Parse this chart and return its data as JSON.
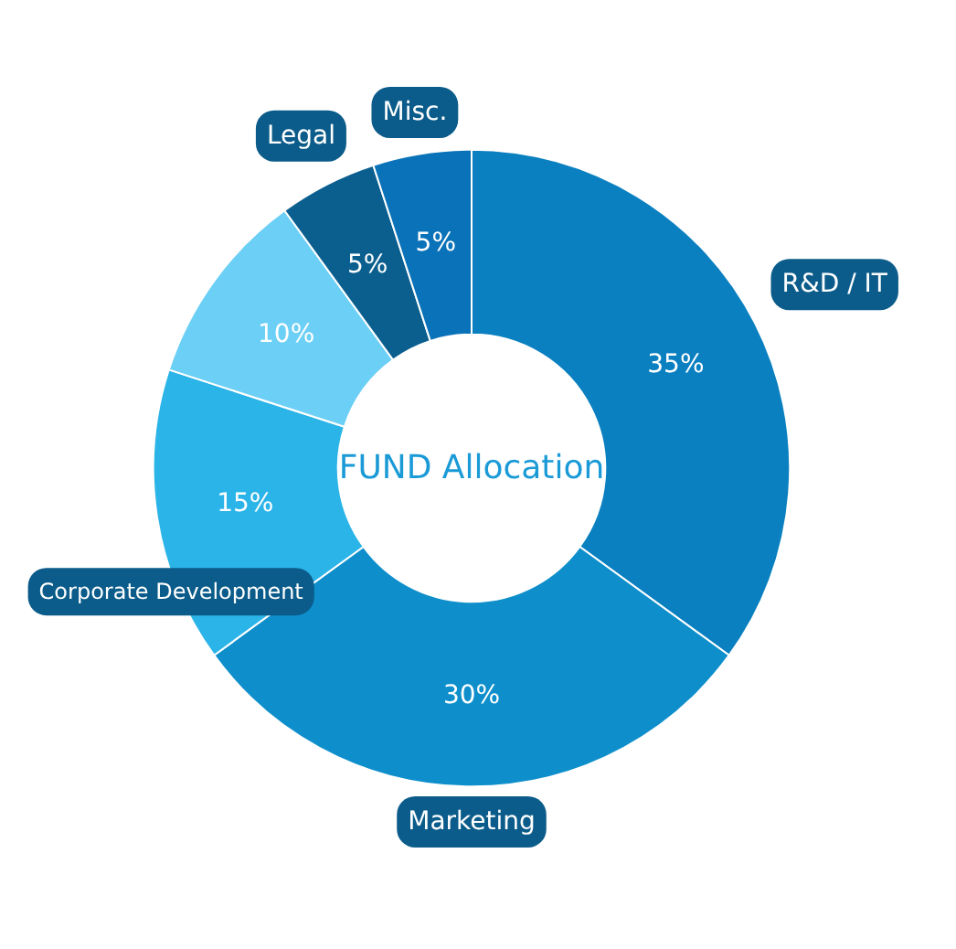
{
  "chart_data": {
    "type": "donut",
    "title": "FUND Allocation",
    "categories": [
      "R&D / IT",
      "Marketing",
      "Corporate Development",
      null,
      "Legal",
      "Misc."
    ],
    "values": [
      35,
      30,
      15,
      10,
      5,
      5
    ],
    "value_labels": [
      "35%",
      "30%",
      "15%",
      "10%",
      "5%",
      "5%"
    ],
    "colors": [
      "#0a80c0",
      "#0e8fcb",
      "#2bb4e8",
      "#6ccff5",
      "#0b5f8f",
      "#0a72b8"
    ]
  }
}
